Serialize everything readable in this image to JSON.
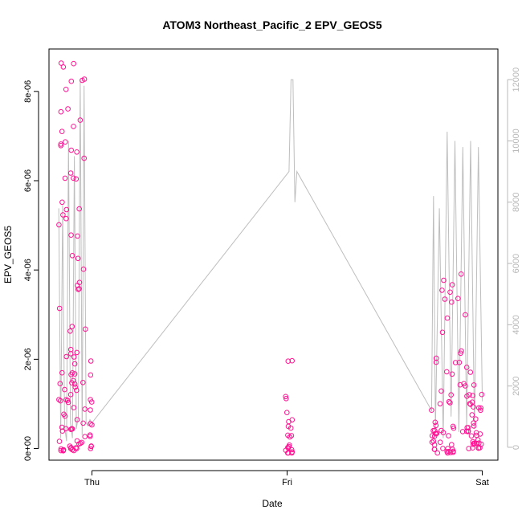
{
  "chart_data": {
    "type": "scatter",
    "title": "ATOM3 Northeast_Pacific_2 EPV_GEOS5",
    "xlabel": "Date",
    "ylabel": "EPV_GEOS5",
    "grid": false,
    "x_ticks": [
      {
        "value": 0.0,
        "label": "Thu"
      },
      {
        "value": 1.0,
        "label": "Fri"
      },
      {
        "value": 2.0,
        "label": "Sat"
      }
    ],
    "y_ticks": [
      {
        "value": 0,
        "label": "0e+00"
      },
      {
        "value": 2e-06,
        "label": "2e-06"
      },
      {
        "value": 4e-06,
        "label": "4e-06"
      },
      {
        "value": 6e-06,
        "label": "6e-06"
      },
      {
        "value": 8e-06,
        "label": "8e-06"
      }
    ],
    "y2_ticks": [
      {
        "value": 0,
        "label": "0"
      },
      {
        "value": 2000,
        "label": "2000"
      },
      {
        "value": 4000,
        "label": "4000"
      },
      {
        "value": 6000,
        "label": "6000"
      },
      {
        "value": 8000,
        "label": "8000"
      },
      {
        "value": 10000,
        "label": "10000"
      },
      {
        "value": 12000,
        "label": "12000"
      }
    ],
    "xlim": [
      -0.22,
      2.08
    ],
    "ylim": [
      -2.6e-07,
      8.95e-06
    ],
    "y2lim": [
      -420,
      13000
    ],
    "point_color": "#ff1493",
    "line_color": "#bebebe",
    "scatter_clusters": [
      {
        "x": [
          -0.17,
          -0.03
        ],
        "y": [
          -5e-08,
          8.8e-06
        ]
      },
      {
        "x": [
          -0.01,
          0.0
        ],
        "y": [
          0.0,
          2e-06
        ]
      },
      {
        "x": [
          0.99,
          1.03
        ],
        "y": [
          -1e-07,
          2.2e-06
        ]
      },
      {
        "x": [
          1.74,
          1.92
        ],
        "y": [
          -1e-07,
          3.95e-06
        ]
      },
      {
        "x": [
          1.92,
          2.0
        ],
        "y": [
          0.0,
          1.9e-06
        ]
      }
    ],
    "series": [
      {
        "name": "",
        "role": "altitude",
        "axis": "right",
        "x": [
          -0.17,
          -0.16,
          -0.15,
          -0.14,
          -0.13,
          -0.12,
          -0.11,
          -0.1,
          -0.09,
          -0.08,
          -0.07,
          -0.06,
          -0.05,
          -0.04,
          -0.03,
          -0.02,
          -0.01,
          0.0,
          1.01,
          1.02,
          1.03,
          1.04,
          1.05,
          1.74,
          1.75,
          1.76,
          1.78,
          1.8,
          1.82,
          1.84,
          1.86,
          1.88,
          1.9,
          1.92,
          1.94,
          1.96,
          1.98,
          2.0
        ],
        "y": [
          7800,
          300,
          7900,
          700,
          200,
          10000,
          800,
          300,
          9500,
          600,
          1000,
          12000,
          400,
          11800,
          800,
          700,
          900,
          800,
          9000,
          12000,
          12000,
          8000,
          9000,
          1200,
          8200,
          600,
          7800,
          300,
          10300,
          1000,
          10000,
          500,
          9800,
          700,
          10000,
          600,
          9800,
          1500
        ]
      }
    ]
  }
}
